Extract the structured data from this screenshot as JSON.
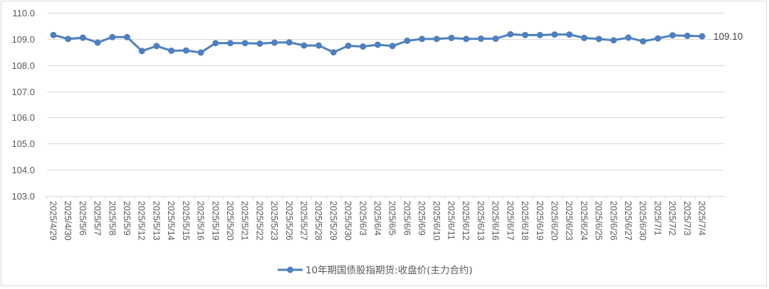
{
  "chart_data": {
    "type": "line",
    "title": "",
    "xlabel": "",
    "ylabel": "",
    "ylim": [
      103.0,
      110.0
    ],
    "yticks": [
      "103.0",
      "104.0",
      "105.0",
      "106.0",
      "107.0",
      "108.0",
      "109.0",
      "110.0"
    ],
    "grid": true,
    "legend_position": "bottom",
    "categories": [
      "2025/4/29",
      "2025/4/30",
      "2025/5/6",
      "2025/5/7",
      "2025/5/8",
      "2025/5/9",
      "2025/5/12",
      "2025/5/13",
      "2025/5/14",
      "2025/5/15",
      "2025/5/16",
      "2025/5/19",
      "2025/5/20",
      "2025/5/21",
      "2025/5/22",
      "2025/5/23",
      "2025/5/26",
      "2025/5/27",
      "2025/5/28",
      "2025/5/29",
      "2025/5/30",
      "2025/6/3",
      "2025/6/4",
      "2025/6/5",
      "2025/6/6",
      "2025/6/9",
      "2025/6/10",
      "2025/6/11",
      "2025/6/12",
      "2025/6/13",
      "2025/6/16",
      "2025/6/17",
      "2025/6/18",
      "2025/6/19",
      "2025/6/20",
      "2025/6/23",
      "2025/6/24",
      "2025/6/25",
      "2025/6/26",
      "2025/6/27",
      "2025/6/30",
      "2025/7/1",
      "2025/7/2",
      "2025/7/3",
      "2025/7/4"
    ],
    "series": [
      {
        "name": "10年期国债股指期货:收盘价(主力合约)",
        "color": "#4e80bf",
        "marker": "circle",
        "values": [
          109.15,
          109.0,
          109.05,
          108.86,
          109.07,
          109.07,
          108.54,
          108.73,
          108.55,
          108.56,
          108.48,
          108.84,
          108.84,
          108.84,
          108.82,
          108.86,
          108.87,
          108.75,
          108.75,
          108.49,
          108.74,
          108.71,
          108.78,
          108.73,
          108.93,
          109.0,
          109.0,
          109.04,
          109.0,
          109.01,
          109.01,
          109.18,
          109.15,
          109.15,
          109.17,
          109.17,
          109.04,
          109.0,
          108.95,
          109.05,
          108.91,
          109.02,
          109.14,
          109.12,
          109.1
        ],
        "last_value_label": "109.10"
      }
    ]
  },
  "legend": {
    "label": "10年期国债股指期货:收盘价(主力合约)"
  },
  "colors": {
    "line": "#4e80bf",
    "grid": "#d9d9d9",
    "text": "#595959",
    "frame": "#d9d9d9"
  }
}
